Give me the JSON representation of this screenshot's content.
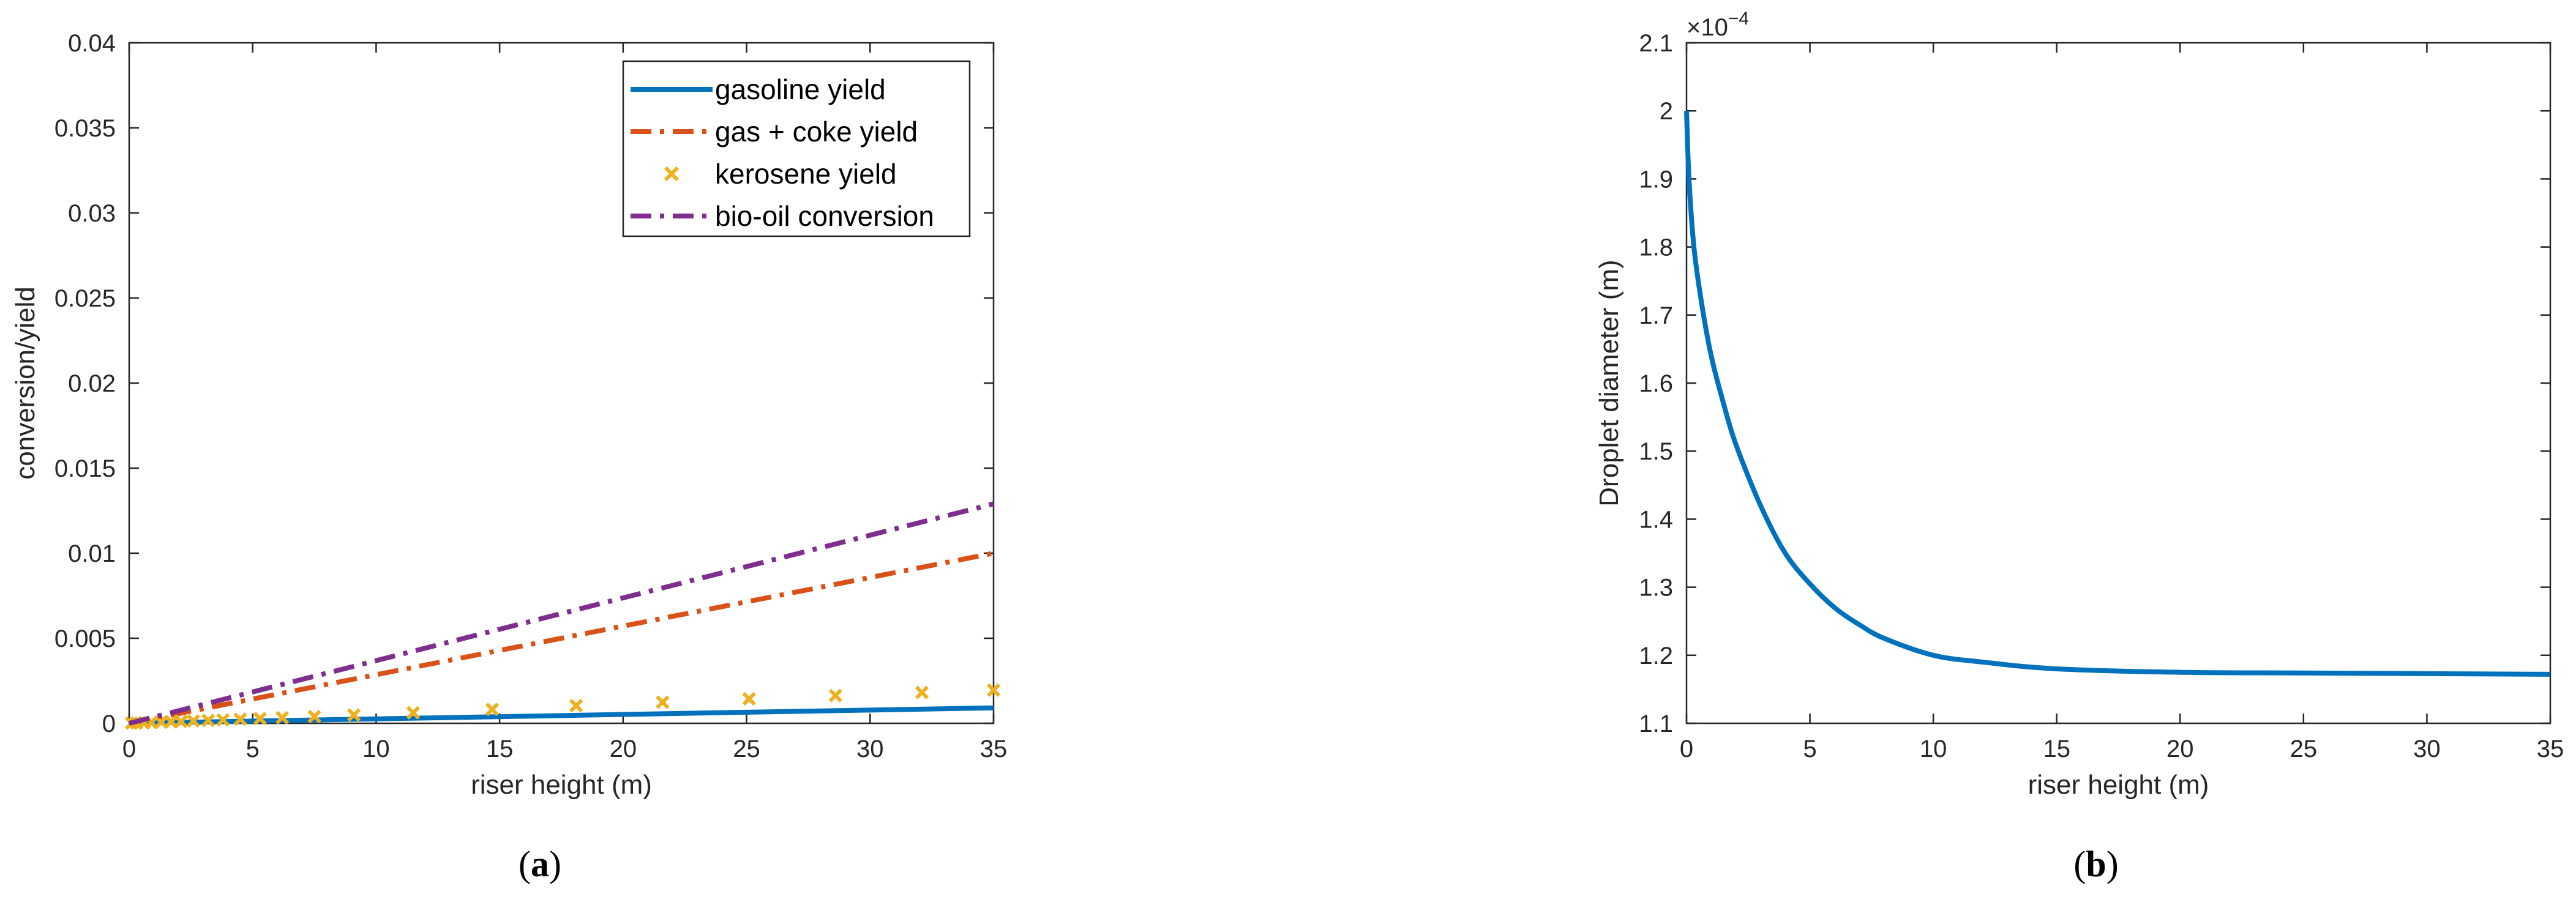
{
  "captions": {
    "a_open": "(",
    "a_letter": "a",
    "a_close": ")",
    "b_open": "(",
    "b_letter": "b",
    "b_close": ")"
  },
  "chart_data": [
    {
      "id": "a",
      "type": "line",
      "title": "",
      "xlabel": "riser height (m)",
      "ylabel": "conversion/yield",
      "xlim": [
        0,
        35
      ],
      "ylim": [
        0,
        0.04
      ],
      "xticks": [
        0,
        5,
        10,
        15,
        20,
        25,
        30,
        35
      ],
      "xtick_labels": [
        "0",
        "5",
        "10",
        "15",
        "20",
        "25",
        "30",
        "35"
      ],
      "yticks": [
        0,
        0.005,
        0.01,
        0.015,
        0.02,
        0.025,
        0.03,
        0.035,
        0.04
      ],
      "ytick_labels": [
        "0",
        "0.005",
        "0.01",
        "0.015",
        "0.02",
        "0.025",
        "0.03",
        "0.035",
        "0.04"
      ],
      "legend_position": "top-right",
      "series": [
        {
          "name": "gasoline yield",
          "style": "solid",
          "color": "#0072BD",
          "x": [
            0,
            5,
            10,
            15,
            20,
            25,
            30,
            35
          ],
          "y": [
            0,
            0.00013,
            0.00026,
            0.00039,
            0.00052,
            0.00065,
            0.00078,
            0.00091
          ]
        },
        {
          "name": "gas + coke yield",
          "style": "dashdot",
          "color": "#D95319",
          "x": [
            0,
            35
          ],
          "y": [
            0,
            0.01
          ]
        },
        {
          "name": "kerosene yield",
          "style": "marker-x",
          "color": "#EDB120",
          "x": [
            0.1,
            0.3,
            0.6,
            0.9,
            1.3,
            1.7,
            2.1,
            2.6,
            3.2,
            3.8,
            4.5,
            5.3,
            6.2,
            7.5,
            9.1,
            11.5,
            14.7,
            18.1,
            21.6,
            25.1,
            28.6,
            32.1,
            35.0
          ],
          "y": [
            1e-05,
            2e-05,
            3e-05,
            5e-05,
            7e-05,
            9e-05,
            0.00011,
            0.00014,
            0.00017,
            0.0002,
            0.00024,
            0.00028,
            0.00033,
            0.0004,
            0.00049,
            0.00062,
            0.00082,
            0.00104,
            0.00124,
            0.00144,
            0.00163,
            0.00181,
            0.00195
          ]
        },
        {
          "name": "bio-oil conversion",
          "style": "dashdot",
          "color": "#7E2F8E",
          "x": [
            0,
            35
          ],
          "y": [
            0,
            0.0129
          ]
        }
      ]
    },
    {
      "id": "b",
      "type": "line",
      "title": "",
      "xlabel": "riser height (m)",
      "ylabel": "Droplet diameter (m)",
      "y_exponent_label": "×10",
      "y_exponent_value": "−4",
      "xlim": [
        0,
        35
      ],
      "ylim": [
        1.1,
        2.1
      ],
      "xticks": [
        0,
        5,
        10,
        15,
        20,
        25,
        30,
        35
      ],
      "xtick_labels": [
        "0",
        "5",
        "10",
        "15",
        "20",
        "25",
        "30",
        "35"
      ],
      "yticks": [
        1.1,
        1.2,
        1.3,
        1.4,
        1.5,
        1.6,
        1.7,
        1.8,
        1.9,
        2.0,
        2.1
      ],
      "ytick_labels": [
        "1.1",
        "1.2",
        "1.3",
        "1.4",
        "1.5",
        "1.6",
        "1.7",
        "1.8",
        "1.9",
        "2",
        "2.1"
      ],
      "series": [
        {
          "name": "droplet diameter",
          "style": "solid",
          "color": "#0072BD",
          "x": [
            0,
            0.1,
            0.3,
            0.6,
            1,
            1.5,
            2,
            3,
            4,
            5,
            6,
            7,
            8,
            10,
            12,
            15,
            20,
            25,
            30,
            35
          ],
          "y": [
            2.0,
            1.9,
            1.8,
            1.72,
            1.64,
            1.57,
            1.51,
            1.42,
            1.35,
            1.305,
            1.27,
            1.245,
            1.225,
            1.2,
            1.19,
            1.18,
            1.175,
            1.174,
            1.173,
            1.172
          ]
        }
      ]
    }
  ]
}
